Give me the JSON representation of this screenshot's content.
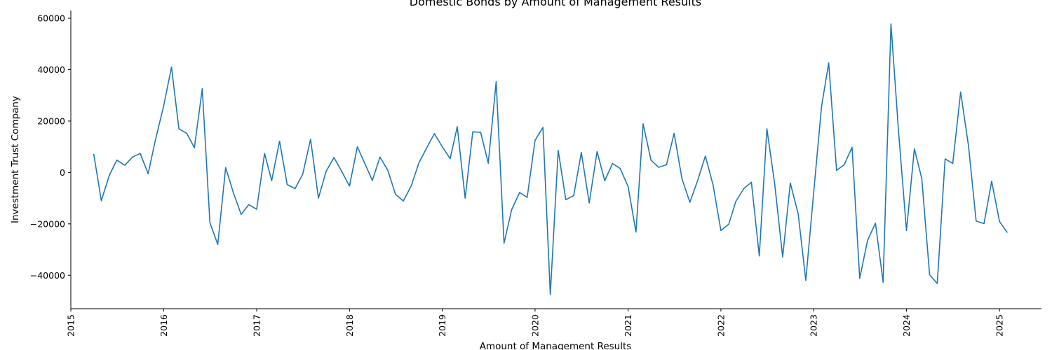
{
  "chart_data": {
    "type": "line",
    "title": "Domestic Bonds by Amount of Management Results",
    "xlabel": "Amount of Management Results",
    "ylabel": "Investment Trust Company",
    "grid": false,
    "legend": "none",
    "xlim": [
      "2015-01-01",
      "2025-06-15"
    ],
    "ylim": [
      -53000,
      63000
    ],
    "x_ticks": [
      "2015",
      "2016",
      "2017",
      "2018",
      "2019",
      "2020",
      "2021",
      "2022",
      "2023",
      "2024",
      "2025"
    ],
    "y_ticks": [
      -40000,
      -20000,
      0,
      20000,
      40000,
      60000
    ],
    "y_tick_labels": [
      "−40000",
      "−20000",
      "0",
      "20000",
      "40000",
      "60000"
    ],
    "color": "#1f77b4",
    "x": [
      "2015-04-01",
      "2015-05-01",
      "2015-06-01",
      "2015-07-01",
      "2015-08-01",
      "2015-09-01",
      "2015-10-01",
      "2015-11-01",
      "2015-12-01",
      "2016-01-01",
      "2016-02-01",
      "2016-03-01",
      "2016-04-01",
      "2016-05-01",
      "2016-06-01",
      "2016-07-01",
      "2016-08-01",
      "2016-09-01",
      "2016-10-01",
      "2016-11-01",
      "2016-12-01",
      "2017-01-01",
      "2017-02-01",
      "2017-03-01",
      "2017-04-01",
      "2017-05-01",
      "2017-06-01",
      "2017-07-01",
      "2017-08-01",
      "2017-09-01",
      "2017-10-01",
      "2017-11-01",
      "2017-12-01",
      "2018-01-01",
      "2018-02-01",
      "2018-03-01",
      "2018-04-01",
      "2018-05-01",
      "2018-06-01",
      "2018-07-01",
      "2018-08-01",
      "2018-09-01",
      "2018-10-01",
      "2018-11-01",
      "2018-12-01",
      "2019-01-01",
      "2019-02-01",
      "2019-03-01",
      "2019-04-01",
      "2019-05-01",
      "2019-06-01",
      "2019-07-01",
      "2019-08-01",
      "2019-09-01",
      "2019-10-01",
      "2019-11-01",
      "2019-12-01",
      "2020-01-01",
      "2020-02-01",
      "2020-03-01",
      "2020-04-01",
      "2020-05-01",
      "2020-06-01",
      "2020-07-01",
      "2020-08-01",
      "2020-09-01",
      "2020-10-01",
      "2020-11-01",
      "2020-12-01",
      "2021-01-01",
      "2021-02-01",
      "2021-03-01",
      "2021-04-01",
      "2021-05-01",
      "2021-06-01",
      "2021-07-01",
      "2021-08-01",
      "2021-09-01",
      "2021-10-01",
      "2021-11-01",
      "2021-12-01",
      "2022-01-01",
      "2022-02-01",
      "2022-03-01",
      "2022-04-01",
      "2022-05-01",
      "2022-06-01",
      "2022-07-01",
      "2022-08-01",
      "2022-09-01",
      "2022-10-01",
      "2022-11-01",
      "2022-12-01",
      "2023-01-01",
      "2023-02-01",
      "2023-03-01",
      "2023-04-01",
      "2023-05-01",
      "2023-06-01",
      "2023-07-01",
      "2023-08-01",
      "2023-09-01",
      "2023-10-01",
      "2023-11-01",
      "2023-12-01",
      "2024-01-01",
      "2024-02-01",
      "2024-03-01",
      "2024-04-01",
      "2024-05-01",
      "2024-06-01",
      "2024-07-01",
      "2024-08-01",
      "2024-09-01",
      "2024-10-01",
      "2024-11-01",
      "2024-12-01",
      "2025-01-01",
      "2025-02-01"
    ],
    "y": [
      7200,
      -11000,
      -1200,
      4800,
      2800,
      6000,
      7400,
      -500,
      13200,
      25800,
      41000,
      17000,
      15200,
      9600,
      32600,
      -19500,
      -28000,
      1900,
      -7800,
      -16300,
      -12500,
      -14300,
      7400,
      -3200,
      12200,
      -4700,
      -6300,
      -700,
      12900,
      -10000,
      400,
      5800,
      500,
      -5300,
      10000,
      3800,
      -3100,
      6000,
      800,
      -8500,
      -11100,
      -5200,
      3700,
      9600,
      15100,
      10000,
      5400,
      17800,
      -10000,
      15800,
      15600,
      3600,
      35300,
      -27500,
      -14500,
      -7800,
      -9700,
      12500,
      17500,
      -47500,
      8600,
      -10600,
      -9000,
      7800,
      -11900,
      8100,
      -3200,
      3500,
      1500,
      -5500,
      -23200,
      18900,
      4800,
      2000,
      3000,
      15200,
      -2500,
      -11600,
      -3300,
      6400,
      -4800,
      -22600,
      -20100,
      -11200,
      -6300,
      -3800,
      -32500,
      17000,
      -4800,
      -32900,
      -4100,
      -16100,
      -42000,
      -7700,
      25700,
      42600,
      800,
      3000,
      9800,
      -41200,
      -26400,
      -19700,
      -42700,
      57800,
      15600,
      -22600,
      9200,
      -2300,
      -39800,
      -43200,
      5300,
      3500,
      31300,
      10300,
      -18900,
      -19900,
      -3400,
      -19100,
      -23400
    ]
  }
}
